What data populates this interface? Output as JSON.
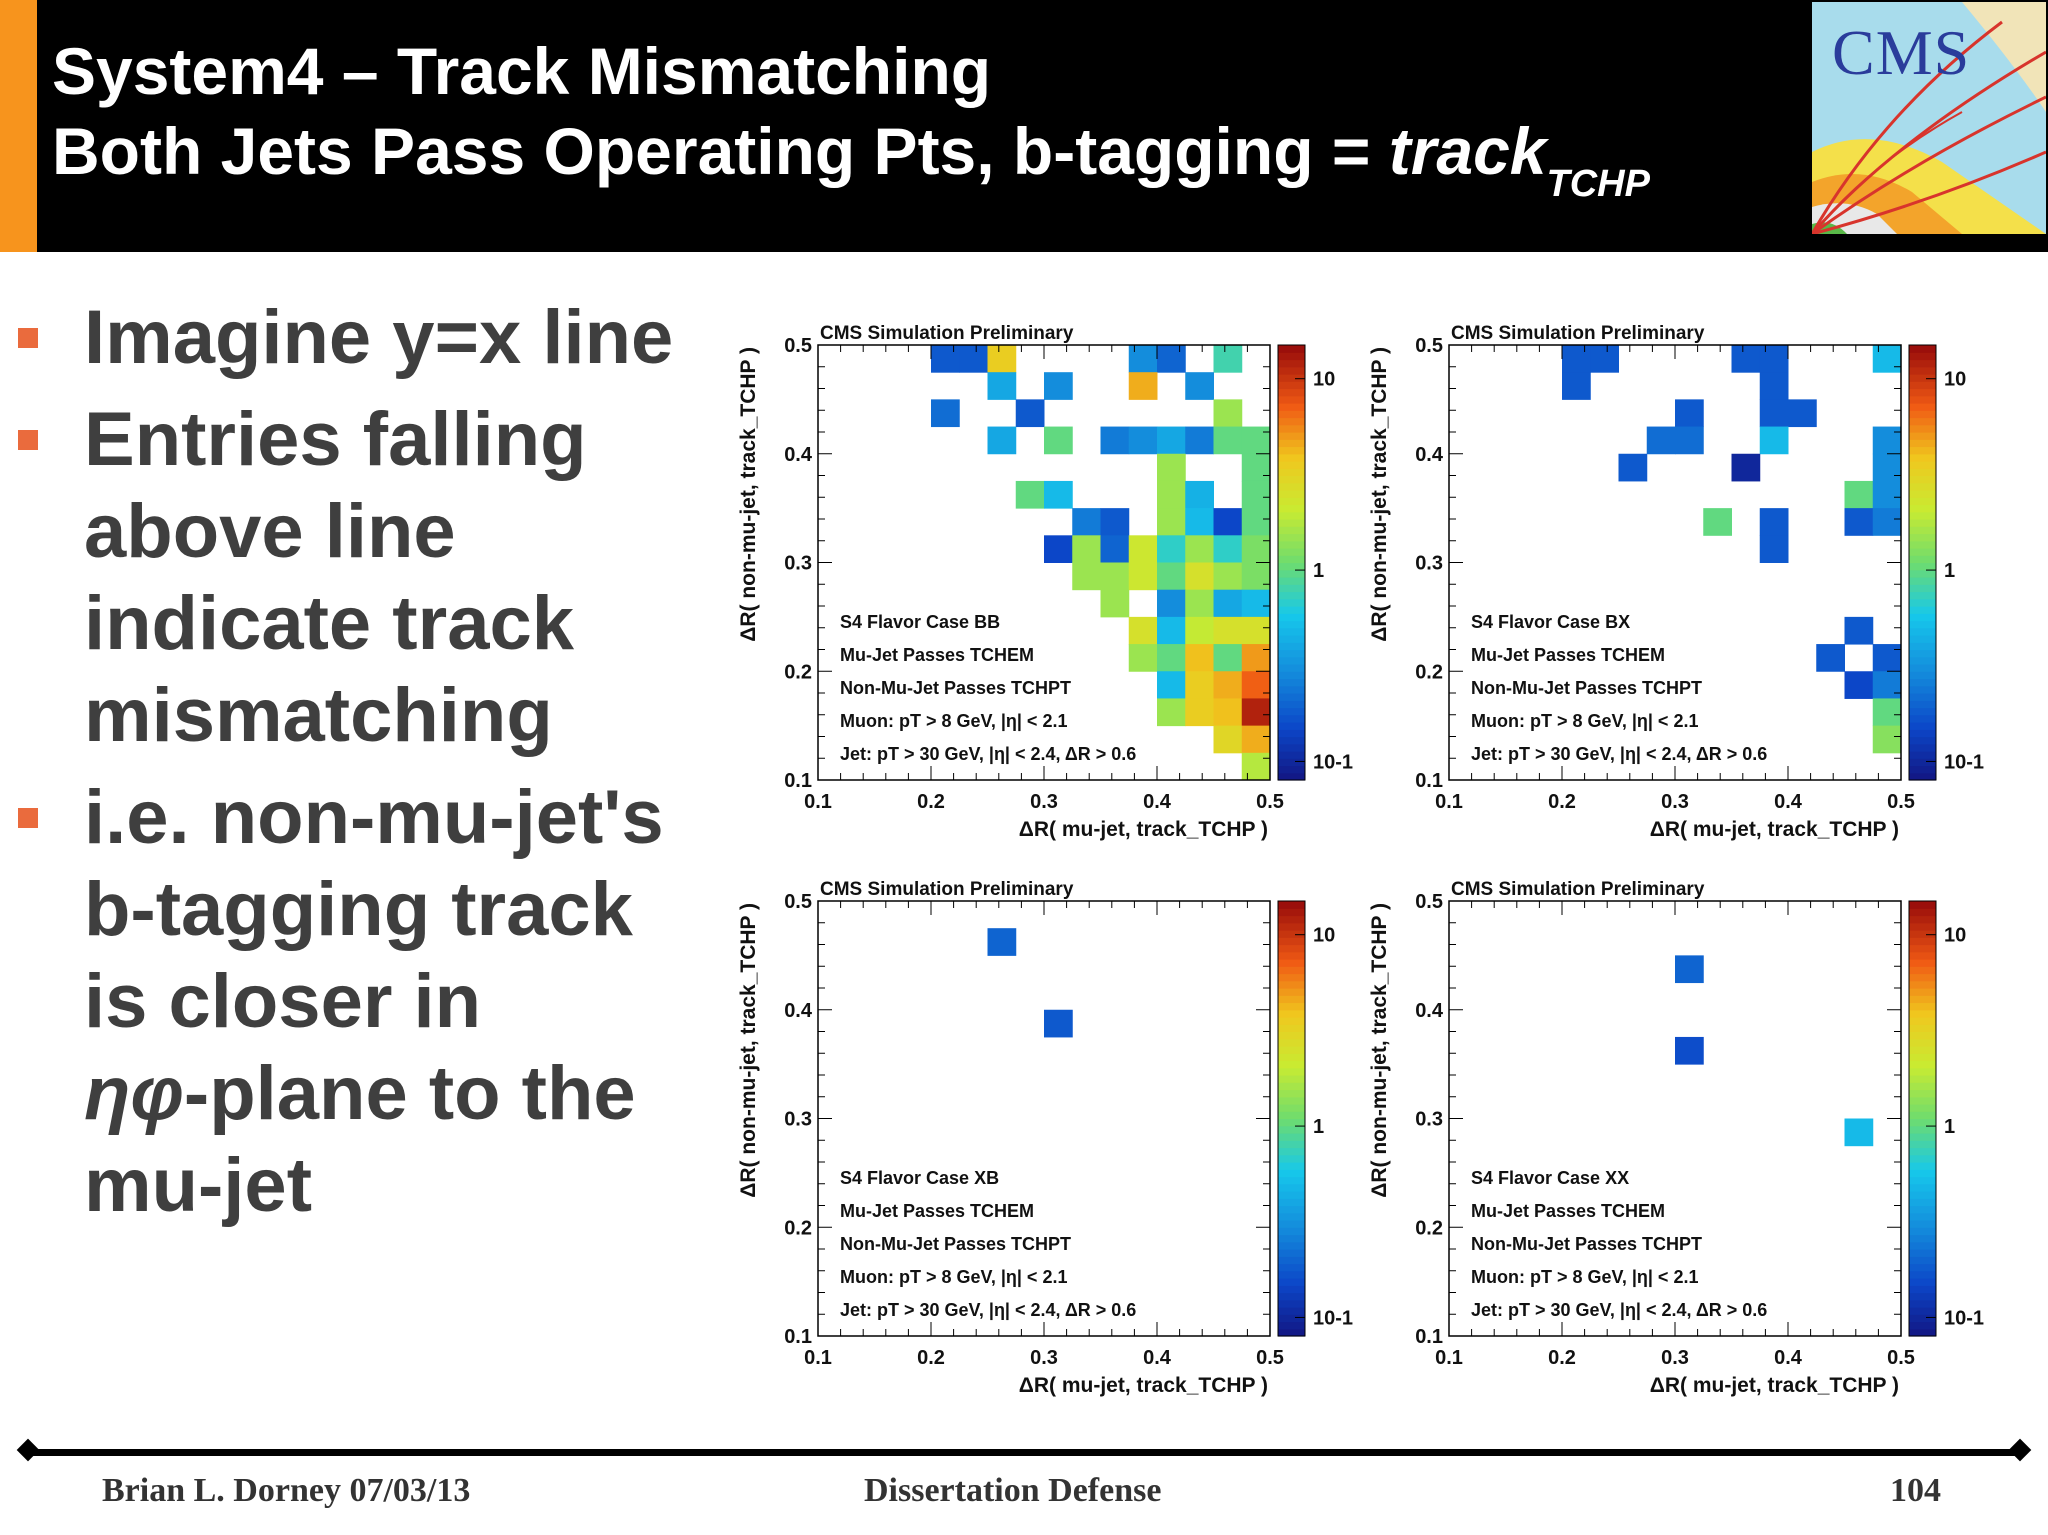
{
  "slide": {
    "title_line1": "System4 – Track Mismatching",
    "title_line2_main": "Both Jets Pass Operating Pts, b-tagging = ",
    "title_line2_italic": "track",
    "title_line2_sub": "TCHP",
    "logo_text": "CMS",
    "accent_color": "#f7941d",
    "bullet_color": "#ea6b3d",
    "bullets": [
      [
        "Imagine y=x line"
      ],
      [
        "Entries falling",
        "above line",
        "indicate track",
        "mismatching"
      ],
      [
        "i.e. non-mu-jet's",
        "b-tagging track",
        "is closer in",
        "ηφ-plane to the",
        "mu-jet"
      ]
    ],
    "footer": {
      "author_date": "Brian L. Dorney 07/03/13",
      "center": "Dissertation Defense",
      "page": "104"
    }
  },
  "chart_data": [
    {
      "type": "heatmap",
      "title": "CMS Simulation Preliminary",
      "xlabel": "ΔR( mu-jet, track_TCHP )",
      "ylabel": "ΔR( non-mu-jet, track_TCHP )",
      "xlim": [
        0.1,
        0.5
      ],
      "ylim": [
        0.1,
        0.5
      ],
      "xticks": [
        "0.1",
        "0.2",
        "0.3",
        "0.4",
        "0.5"
      ],
      "yticks": [
        "0.1",
        "0.2",
        "0.3",
        "0.4",
        "0.5"
      ],
      "z_scale": "log",
      "z_range": [
        0.08,
        15
      ],
      "z_ticks": [
        "10",
        "1",
        "10-1"
      ],
      "bin_width": 0.025,
      "annotations": [
        "S4 Flavor Case BB",
        "Mu-Jet Passes TCHEM",
        "Non-Mu-Jet Passes TCHPT",
        "Muon: pT > 8 GeV, |η| < 2.1",
        "Jet: pT > 30 GeV, |η| < 2.4, ΔR > 0.6"
      ],
      "bins": [
        [
          0.2125,
          0.4875,
          0.18
        ],
        [
          0.2375,
          0.4875,
          0.18
        ],
        [
          0.2625,
          0.4875,
          3.5
        ],
        [
          0.3875,
          0.4875,
          0.3
        ],
        [
          0.4125,
          0.4875,
          0.2
        ],
        [
          0.4625,
          0.4875,
          0.8
        ],
        [
          0.2625,
          0.4625,
          0.4
        ],
        [
          0.3125,
          0.4625,
          0.3
        ],
        [
          0.3875,
          0.4625,
          4.5
        ],
        [
          0.4375,
          0.4625,
          0.3
        ],
        [
          0.2125,
          0.4375,
          0.22
        ],
        [
          0.2875,
          0.4375,
          0.18
        ],
        [
          0.4625,
          0.4375,
          1.5
        ],
        [
          0.2625,
          0.4125,
          0.4
        ],
        [
          0.3125,
          0.4125,
          1.0
        ],
        [
          0.3625,
          0.4125,
          0.25
        ],
        [
          0.3875,
          0.4125,
          0.3
        ],
        [
          0.4125,
          0.4125,
          0.4
        ],
        [
          0.4375,
          0.4125,
          0.25
        ],
        [
          0.4625,
          0.4125,
          1.0
        ],
        [
          0.4875,
          0.4125,
          1.0
        ],
        [
          0.4125,
          0.3875,
          1.5
        ],
        [
          0.4875,
          0.3875,
          1.0
        ],
        [
          0.2875,
          0.3625,
          1.0
        ],
        [
          0.3125,
          0.3625,
          0.5
        ],
        [
          0.4125,
          0.3625,
          1.5
        ],
        [
          0.4375,
          0.3625,
          0.45
        ],
        [
          0.4875,
          0.3625,
          1.0
        ],
        [
          0.3375,
          0.3375,
          0.25
        ],
        [
          0.3625,
          0.3375,
          0.18
        ],
        [
          0.4125,
          0.3375,
          1.5
        ],
        [
          0.4375,
          0.3375,
          0.5
        ],
        [
          0.4625,
          0.3375,
          0.15
        ],
        [
          0.4875,
          0.3375,
          1.0
        ],
        [
          0.3125,
          0.3125,
          0.15
        ],
        [
          0.3375,
          0.3125,
          1.5
        ],
        [
          0.3625,
          0.3125,
          0.2
        ],
        [
          0.3875,
          0.3125,
          2.2
        ],
        [
          0.4125,
          0.3125,
          0.7
        ],
        [
          0.4375,
          0.3125,
          1.5
        ],
        [
          0.4625,
          0.3125,
          0.7
        ],
        [
          0.4875,
          0.3125,
          1.2
        ],
        [
          0.3375,
          0.2875,
          1.5
        ],
        [
          0.3625,
          0.2875,
          1.5
        ],
        [
          0.3875,
          0.2875,
          2.2
        ],
        [
          0.4125,
          0.2875,
          1.0
        ],
        [
          0.4375,
          0.2875,
          2.5
        ],
        [
          0.4625,
          0.2875,
          1.5
        ],
        [
          0.4875,
          0.2875,
          1.2
        ],
        [
          0.3625,
          0.2625,
          1.5
        ],
        [
          0.4125,
          0.2625,
          0.3
        ],
        [
          0.4375,
          0.2625,
          1.5
        ],
        [
          0.4625,
          0.2625,
          0.4
        ],
        [
          0.4875,
          0.2625,
          0.5
        ],
        [
          0.3875,
          0.2375,
          2.5
        ],
        [
          0.4125,
          0.2375,
          0.5
        ],
        [
          0.4375,
          0.2375,
          2.0
        ],
        [
          0.4625,
          0.2375,
          2.5
        ],
        [
          0.4875,
          0.2375,
          2.5
        ],
        [
          0.3875,
          0.2125,
          1.5
        ],
        [
          0.4125,
          0.2125,
          1.0
        ],
        [
          0.4375,
          0.2125,
          4.0
        ],
        [
          0.4625,
          0.2125,
          1.0
        ],
        [
          0.4875,
          0.2125,
          5.0
        ],
        [
          0.4125,
          0.1875,
          0.5
        ],
        [
          0.4375,
          0.1875,
          3.5
        ],
        [
          0.4625,
          0.1875,
          4.5
        ],
        [
          0.4875,
          0.1875,
          7.0
        ],
        [
          0.4125,
          0.1625,
          1.5
        ],
        [
          0.4375,
          0.1625,
          3.5
        ],
        [
          0.4625,
          0.1625,
          4.0
        ],
        [
          0.4875,
          0.1625,
          12
        ],
        [
          0.4625,
          0.1375,
          3.0
        ],
        [
          0.4875,
          0.1375,
          4.5
        ],
        [
          0.4875,
          0.1125,
          1.8
        ]
      ]
    },
    {
      "type": "heatmap",
      "title": "CMS Simulation Preliminary",
      "xlabel": "ΔR( mu-jet, track_TCHP )",
      "ylabel": "ΔR( non-mu-jet, track_TCHP )",
      "xlim": [
        0.1,
        0.5
      ],
      "ylim": [
        0.1,
        0.5
      ],
      "xticks": [
        "0.1",
        "0.2",
        "0.3",
        "0.4",
        "0.5"
      ],
      "yticks": [
        "0.1",
        "0.2",
        "0.3",
        "0.4",
        "0.5"
      ],
      "z_scale": "log",
      "z_range": [
        0.08,
        15
      ],
      "z_ticks": [
        "10",
        "1",
        "10-1"
      ],
      "bin_width": 0.025,
      "annotations": [
        "S4 Flavor Case BX",
        "Mu-Jet Passes TCHEM",
        "Non-Mu-Jet Passes TCHPT",
        "Muon: pT > 8 GeV, |η| < 2.1",
        "Jet: pT > 30 GeV, |η| < 2.4, ΔR > 0.6"
      ],
      "bins": [
        [
          0.2125,
          0.4875,
          0.18
        ],
        [
          0.2375,
          0.4875,
          0.18
        ],
        [
          0.3625,
          0.4875,
          0.18
        ],
        [
          0.3875,
          0.4875,
          0.18
        ],
        [
          0.4875,
          0.4875,
          0.5
        ],
        [
          0.2125,
          0.4625,
          0.18
        ],
        [
          0.3875,
          0.4625,
          0.18
        ],
        [
          0.3875,
          0.4375,
          0.18
        ],
        [
          0.4125,
          0.4375,
          0.18
        ],
        [
          0.3125,
          0.4375,
          0.18
        ],
        [
          0.2875,
          0.4125,
          0.22
        ],
        [
          0.3125,
          0.4125,
          0.22
        ],
        [
          0.3875,
          0.4125,
          0.5
        ],
        [
          0.4875,
          0.4125,
          0.3
        ],
        [
          0.2625,
          0.3875,
          0.18
        ],
        [
          0.3625,
          0.3875,
          0.1
        ],
        [
          0.4875,
          0.3875,
          0.3
        ],
        [
          0.4625,
          0.3625,
          1.0
        ],
        [
          0.4875,
          0.3625,
          0.3
        ],
        [
          0.3375,
          0.3375,
          1.0
        ],
        [
          0.3875,
          0.3375,
          0.18
        ],
        [
          0.4625,
          0.3375,
          0.18
        ],
        [
          0.4875,
          0.3375,
          0.25
        ],
        [
          0.3875,
          0.3125,
          0.18
        ],
        [
          0.4625,
          0.2375,
          0.18
        ],
        [
          0.4375,
          0.2125,
          0.18
        ],
        [
          0.4875,
          0.2125,
          0.18
        ],
        [
          0.4625,
          0.1875,
          0.15
        ],
        [
          0.4875,
          0.1875,
          0.25
        ],
        [
          0.4875,
          0.1625,
          1.0
        ],
        [
          0.4875,
          0.1375,
          1.3
        ]
      ]
    },
    {
      "type": "heatmap",
      "title": "CMS Simulation Preliminary",
      "xlabel": "ΔR( mu-jet, track_TCHP )",
      "ylabel": "ΔR( non-mu-jet, track_TCHP )",
      "xlim": [
        0.1,
        0.5
      ],
      "ylim": [
        0.1,
        0.5
      ],
      "xticks": [
        "0.1",
        "0.2",
        "0.3",
        "0.4",
        "0.5"
      ],
      "yticks": [
        "0.1",
        "0.2",
        "0.3",
        "0.4",
        "0.5"
      ],
      "z_scale": "log",
      "z_range": [
        0.08,
        15
      ],
      "z_ticks": [
        "10",
        "1",
        "10-1"
      ],
      "bin_width": 0.025,
      "annotations": [
        "S4 Flavor Case XB",
        "Mu-Jet Passes TCHEM",
        "Non-Mu-Jet Passes TCHPT",
        "Muon: pT > 8 GeV, |η| < 2.1",
        "Jet: pT > 30 GeV, |η| < 2.4, ΔR > 0.6"
      ],
      "bins": [
        [
          0.2625,
          0.4625,
          0.2
        ],
        [
          0.3125,
          0.3875,
          0.18
        ]
      ]
    },
    {
      "type": "heatmap",
      "title": "CMS Simulation Preliminary",
      "xlabel": "ΔR( mu-jet, track_TCHP )",
      "ylabel": "ΔR( non-mu-jet, track_TCHP )",
      "xlim": [
        0.1,
        0.5
      ],
      "ylim": [
        0.1,
        0.5
      ],
      "xticks": [
        "0.1",
        "0.2",
        "0.3",
        "0.4",
        "0.5"
      ],
      "yticks": [
        "0.1",
        "0.2",
        "0.3",
        "0.4",
        "0.5"
      ],
      "z_scale": "log",
      "z_range": [
        0.08,
        15
      ],
      "z_ticks": [
        "10",
        "1",
        "10-1"
      ],
      "bin_width": 0.025,
      "annotations": [
        "S4 Flavor Case XX",
        "Mu-Jet Passes TCHEM",
        "Non-Mu-Jet Passes TCHPT",
        "Muon: pT > 8 GeV, |η| < 2.1",
        "Jet: pT > 30 GeV, |η| < 2.4, ΔR > 0.6"
      ],
      "bins": [
        [
          0.3125,
          0.4375,
          0.2
        ],
        [
          0.3125,
          0.3625,
          0.16
        ],
        [
          0.4625,
          0.2875,
          0.5
        ]
      ]
    }
  ]
}
